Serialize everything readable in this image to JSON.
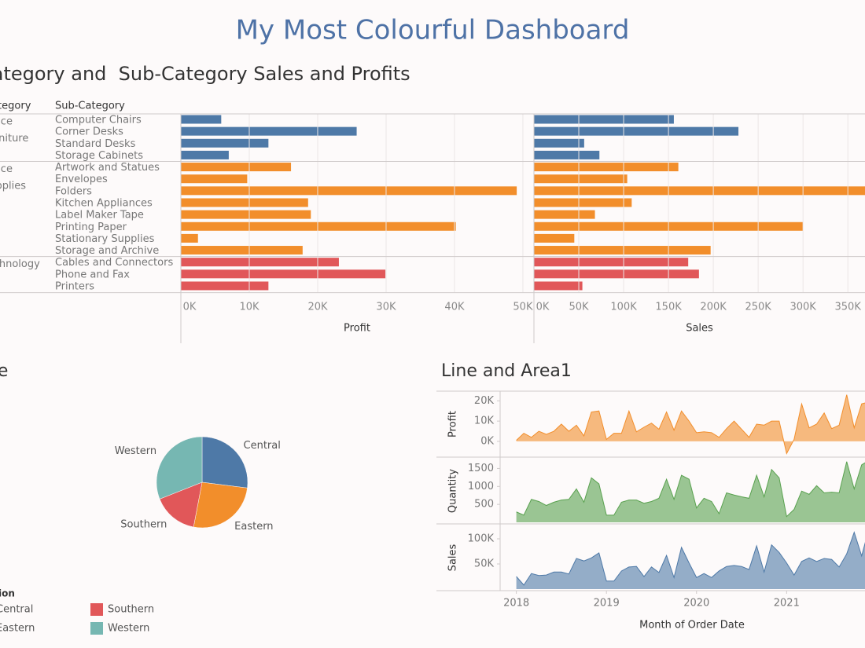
{
  "title": "My Most Colourful Dashboard",
  "chart_data": [
    {
      "type": "bar",
      "title": "Category and  Sub-Category Sales and Profits",
      "category_header": "Category",
      "subcategory_header": "Sub-Category",
      "measures": [
        {
          "name": "Profit",
          "xlim": [
            0,
            51500
          ],
          "xticks": [
            {
              "value": 0,
              "label": "0K"
            },
            {
              "value": 10000,
              "label": "10K"
            },
            {
              "value": 20000,
              "label": "20K"
            },
            {
              "value": 30000,
              "label": "30K"
            },
            {
              "value": 40000,
              "label": "40K"
            },
            {
              "value": 50000,
              "label": "50K"
            }
          ]
        },
        {
          "name": "Sales",
          "xlim": [
            0,
            370000
          ],
          "xticks": [
            {
              "value": 0,
              "label": "0K"
            },
            {
              "value": 50000,
              "label": "50K"
            },
            {
              "value": 100000,
              "label": "100K"
            },
            {
              "value": 150000,
              "label": "150K"
            },
            {
              "value": 200000,
              "label": "200K"
            },
            {
              "value": 250000,
              "label": "250K"
            },
            {
              "value": 300000,
              "label": "300K"
            },
            {
              "value": 350000,
              "label": "350K"
            }
          ]
        }
      ],
      "groups": [
        {
          "name": "Office Furniture",
          "color": "#4e79a7",
          "subcategories": [
            "Computer Chairs",
            "Corner Desks",
            "Standard Desks",
            "Storage Cabinets"
          ],
          "values": [
            [
              5900,
              25700,
              12800,
              7000
            ],
            [
              156000,
              228000,
              56000,
              73000
            ]
          ]
        },
        {
          "name": "Office Supplies",
          "color": "#f28e2b",
          "subcategories": [
            "Artwork and Statues",
            "Envelopes",
            "Folders",
            "Kitchen Appliances",
            "Label Maker Tape",
            "Printing Paper",
            "Stationary Supplies",
            "Storage and Archive"
          ],
          "values": [
            [
              16100,
              9700,
              49100,
              18600,
              19000,
              40200,
              2500,
              17800
            ],
            [
              161000,
              104000,
              375000,
              109000,
              68000,
              300000,
              45000,
              197000
            ]
          ]
        },
        {
          "name": "Technology",
          "color": "#e15759",
          "subcategories": [
            "Cables and Connectors",
            "Phone and Fax",
            "Printers"
          ],
          "values": [
            [
              23100,
              29900,
              12800
            ],
            [
              172000,
              184000,
              54000
            ]
          ]
        }
      ]
    },
    {
      "type": "pie",
      "title": "Pie",
      "legend_title": "Region",
      "categories": [
        "Central",
        "Eastern",
        "Southern",
        "Western"
      ],
      "values": [
        27,
        26,
        16,
        31
      ],
      "colors": [
        "#4e79a7",
        "#f28e2b",
        "#e15759",
        "#76b7b2"
      ]
    },
    {
      "type": "area",
      "title": "Line and Area1",
      "xlabel": "Month of Order Date",
      "xlim": [
        2017.82,
        2021.87
      ],
      "xticks": [
        2018,
        2019,
        2020,
        2021
      ],
      "x": [
        2018,
        2018.083,
        2018.167,
        2018.25,
        2018.333,
        2018.417,
        2018.5,
        2018.583,
        2018.667,
        2018.75,
        2018.833,
        2018.917,
        2019,
        2019.083,
        2019.167,
        2019.25,
        2019.333,
        2019.417,
        2019.5,
        2019.583,
        2019.667,
        2019.75,
        2019.833,
        2019.917,
        2020,
        2020.083,
        2020.167,
        2020.25,
        2020.333,
        2020.417,
        2020.5,
        2020.583,
        2020.667,
        2020.75,
        2020.833,
        2020.917,
        2021,
        2021.083,
        2021.167,
        2021.25,
        2021.333,
        2021.417,
        2021.5,
        2021.583,
        2021.667,
        2021.75,
        2021.833,
        2021.917
      ],
      "series": [
        {
          "name": "Profit",
          "color": "#f28e2b",
          "ylim": [
            -7000,
            24000
          ],
          "yticks": [
            {
              "value": 0,
              "label": "0K"
            },
            {
              "value": 10000,
              "label": "10K"
            },
            {
              "value": 20000,
              "label": "20K"
            }
          ],
          "values": [
            500,
            4000,
            2000,
            5000,
            3500,
            5000,
            8500,
            5000,
            8000,
            2700,
            14500,
            15000,
            1000,
            4000,
            4000,
            15000,
            4700,
            7000,
            9000,
            6000,
            14500,
            5500,
            15000,
            10000,
            4300,
            4700,
            4300,
            2000,
            6300,
            10000,
            6000,
            2000,
            8500,
            8000,
            10000,
            10000,
            -6000,
            1000,
            18500,
            6700,
            8500,
            14000,
            6300,
            8000,
            23000,
            6700,
            18500,
            19500
          ]
        },
        {
          "name": "Quantity",
          "color": "#59a14f",
          "ylim": [
            0,
            1750
          ],
          "yticks": [
            500,
            1000,
            1500
          ],
          "values": [
            290,
            200,
            640,
            580,
            470,
            560,
            620,
            640,
            930,
            560,
            1240,
            1070,
            200,
            200,
            560,
            620,
            620,
            530,
            580,
            670,
            1200,
            640,
            1310,
            1200,
            400,
            670,
            580,
            240,
            820,
            760,
            710,
            670,
            1310,
            710,
            1470,
            1240,
            160,
            360,
            870,
            780,
            1020,
            820,
            840,
            820,
            1690,
            930,
            1600,
            1730
          ]
        },
        {
          "name": "Sales",
          "color": "#4e79a7",
          "ylim": [
            0,
            125000
          ],
          "yticks": [
            {
              "value": 50000,
              "label": "50K"
            },
            {
              "value": 100000,
              "label": "100K"
            }
          ],
          "values": [
            25000,
            8000,
            31000,
            27000,
            28000,
            34000,
            34000,
            30000,
            61000,
            56000,
            62000,
            72000,
            16000,
            16000,
            36000,
            44000,
            45000,
            25000,
            44000,
            33000,
            67000,
            23000,
            83000,
            52000,
            23000,
            31000,
            23000,
            36000,
            45000,
            47000,
            45000,
            39000,
            86000,
            34000,
            88000,
            73000,
            52000,
            28000,
            55000,
            62000,
            55000,
            61000,
            59000,
            44000,
            70000,
            113000,
            66000,
            122000
          ]
        }
      ]
    }
  ]
}
